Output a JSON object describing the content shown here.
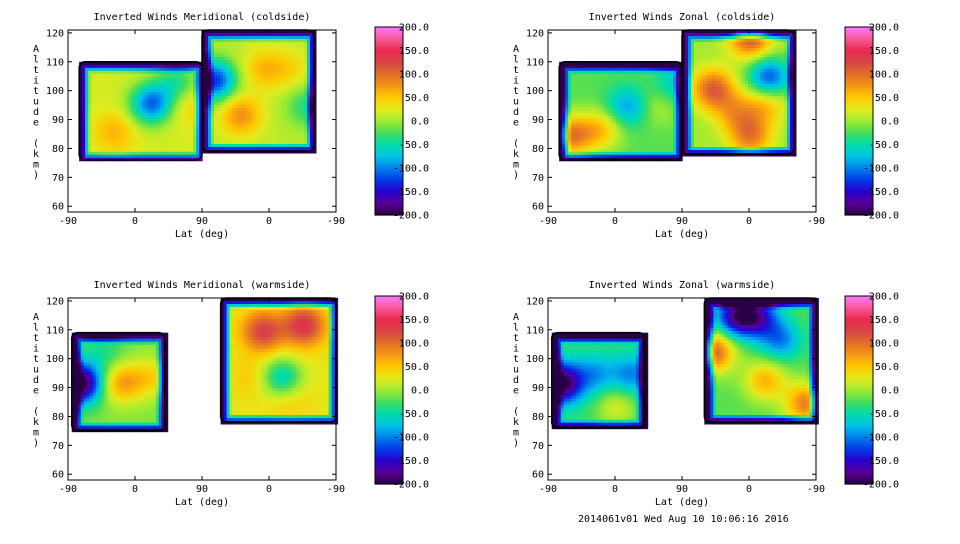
{
  "footer": "2014061v01 Wed Aug 10 10:06:16 2016",
  "chart_data": [
    {
      "type": "heatmap",
      "title": "Inverted Winds Meridional (coldside)",
      "xlabel": "Lat (deg)",
      "ylabel": "Altitude (km)",
      "x_tick_labels": [
        "-90",
        "0",
        "90",
        "0",
        "-90"
      ],
      "y_tick_labels": [
        "60",
        "70",
        "80",
        "90",
        "100",
        "110",
        "120"
      ],
      "ylim": [
        58,
        121
      ],
      "colorbar": {
        "min": -200,
        "max": 200,
        "tick_labels": [
          "200.0",
          "150.0",
          "100.0",
          "50.0",
          "0.0",
          "-50.0",
          "-100.0",
          "-150.0",
          "-200.0"
        ]
      },
      "regions": [
        {
          "lat_range": [
            -75,
            90
          ],
          "alt_range": [
            76,
            110
          ],
          "mean_value": 20,
          "features": [
            {
              "lat": -30,
              "alt": 86,
              "value": 60
            },
            {
              "lat": 20,
              "alt": 96,
              "value": -110
            },
            {
              "lat": 70,
              "alt": 96,
              "value": 50
            },
            {
              "lat": 55,
              "alt": 103,
              "value": -40
            }
          ]
        },
        {
          "lat_range": [
            90,
            -60
          ],
          "alt_range": [
            79,
            121
          ],
          "mean_value": 10,
          "features": [
            {
              "lat": 75,
              "alt": 104,
              "value": -130
            },
            {
              "lat": 10,
              "alt": 108,
              "value": 55
            },
            {
              "lat": 40,
              "alt": 92,
              "value": 80
            },
            {
              "lat": -25,
              "alt": 108,
              "value": 40
            },
            {
              "lat": -50,
              "alt": 95,
              "value": -40
            }
          ]
        }
      ]
    },
    {
      "type": "heatmap",
      "title": "Inverted Winds Zonal (coldside)",
      "xlabel": "Lat (deg)",
      "ylabel": "Altitude (km)",
      "x_tick_labels": [
        "-90",
        "0",
        "90",
        "0",
        "-90"
      ],
      "y_tick_labels": [
        "60",
        "70",
        "80",
        "90",
        "100",
        "110",
        "120"
      ],
      "ylim": [
        58,
        121
      ],
      "colorbar": {
        "min": -200,
        "max": 200,
        "tick_labels": [
          "200.0",
          "150.0",
          "100.0",
          "50.0",
          "0.0",
          "-50.0",
          "-100.0",
          "-150.0",
          "-200.0"
        ]
      },
      "regions": [
        {
          "lat_range": [
            -75,
            90
          ],
          "alt_range": [
            76,
            110
          ],
          "mean_value": -20,
          "features": [
            {
              "lat": -60,
              "alt": 85,
              "value": 90
            },
            {
              "lat": -20,
              "alt": 87,
              "value": 50
            },
            {
              "lat": 15,
              "alt": 95,
              "value": -90
            },
            {
              "lat": 55,
              "alt": 95,
              "value": 10
            },
            {
              "lat": 80,
              "alt": 103,
              "value": -70
            }
          ]
        },
        {
          "lat_range": [
            90,
            -60
          ],
          "alt_range": [
            78,
            121
          ],
          "mean_value": 0,
          "features": [
            {
              "lat": 50,
              "alt": 101,
              "value": 110
            },
            {
              "lat": 20,
              "alt": 93,
              "value": 60
            },
            {
              "lat": -20,
              "alt": 96,
              "value": 60
            },
            {
              "lat": -25,
              "alt": 105,
              "value": -120
            },
            {
              "lat": 0,
              "alt": 119,
              "value": 120
            },
            {
              "lat": 0,
              "alt": 85,
              "value": 90
            }
          ]
        }
      ]
    },
    {
      "type": "heatmap",
      "title": "Inverted Winds Meridional (warmside)",
      "xlabel": "Lat (deg)",
      "ylabel": "Altitude (km)",
      "x_tick_labels": [
        "-90",
        "0",
        "90",
        "0",
        "-90"
      ],
      "y_tick_labels": [
        "60",
        "70",
        "80",
        "90",
        "100",
        "110",
        "120"
      ],
      "ylim": [
        58,
        121
      ],
      "colorbar": {
        "min": -200,
        "max": 200,
        "tick_labels": [
          "200.0",
          "150.0",
          "100.0",
          "50.0",
          "0.0",
          "-50.0",
          "-100.0",
          "-150.0",
          "-200.0"
        ]
      },
      "regions": [
        {
          "lat_range": [
            -85,
            40
          ],
          "alt_range": [
            75,
            109
          ],
          "mean_value": -10,
          "features": [
            {
              "lat": -75,
              "alt": 92,
              "value": -210
            },
            {
              "lat": -20,
              "alt": 92,
              "value": 70
            },
            {
              "lat": 20,
              "alt": 94,
              "value": 40
            },
            {
              "lat": -45,
              "alt": 103,
              "value": -40
            }
          ]
        },
        {
          "lat_range": [
            65,
            -90
          ],
          "alt_range": [
            78,
            121
          ],
          "mean_value": 30,
          "features": [
            {
              "lat": 10,
              "alt": 110,
              "value": 130
            },
            {
              "lat": -45,
              "alt": 112,
              "value": 140
            },
            {
              "lat": 25,
              "alt": 94,
              "value": 50
            },
            {
              "lat": -15,
              "alt": 94,
              "value": -60
            },
            {
              "lat": -25,
              "alt": 86,
              "value": 50
            }
          ]
        }
      ]
    },
    {
      "type": "heatmap",
      "title": "Inverted Winds Zonal (warmside)",
      "xlabel": "Lat (deg)",
      "ylabel": "Altitude (km)",
      "x_tick_labels": [
        "-90",
        "0",
        "90",
        "0",
        "-90"
      ],
      "y_tick_labels": [
        "60",
        "70",
        "80",
        "90",
        "100",
        "110",
        "120"
      ],
      "ylim": [
        58,
        121
      ],
      "colorbar": {
        "min": -200,
        "max": 200,
        "tick_labels": [
          "200.0",
          "150.0",
          "100.0",
          "50.0",
          "0.0",
          "-50.0",
          "-100.0",
          "-150.0",
          "-200.0"
        ]
      },
      "regions": [
        {
          "lat_range": [
            -85,
            40
          ],
          "alt_range": [
            76,
            109
          ],
          "mean_value": -30,
          "features": [
            {
              "lat": -75,
              "alt": 92,
              "value": -210
            },
            {
              "lat": -30,
              "alt": 95,
              "value": -90
            },
            {
              "lat": 20,
              "alt": 95,
              "value": -100
            },
            {
              "lat": 0,
              "alt": 84,
              "value": 20
            }
          ]
        },
        {
          "lat_range": [
            60,
            -90
          ],
          "alt_range": [
            78,
            121
          ],
          "mean_value": -20,
          "features": [
            {
              "lat": 50,
              "alt": 103,
              "value": 110
            },
            {
              "lat": 20,
              "alt": 115,
              "value": -160
            },
            {
              "lat": -10,
              "alt": 115,
              "value": -140
            },
            {
              "lat": -40,
              "alt": 107,
              "value": -100
            },
            {
              "lat": -20,
              "alt": 93,
              "value": 60
            },
            {
              "lat": -75,
              "alt": 85,
              "value": 90
            }
          ]
        }
      ]
    }
  ]
}
